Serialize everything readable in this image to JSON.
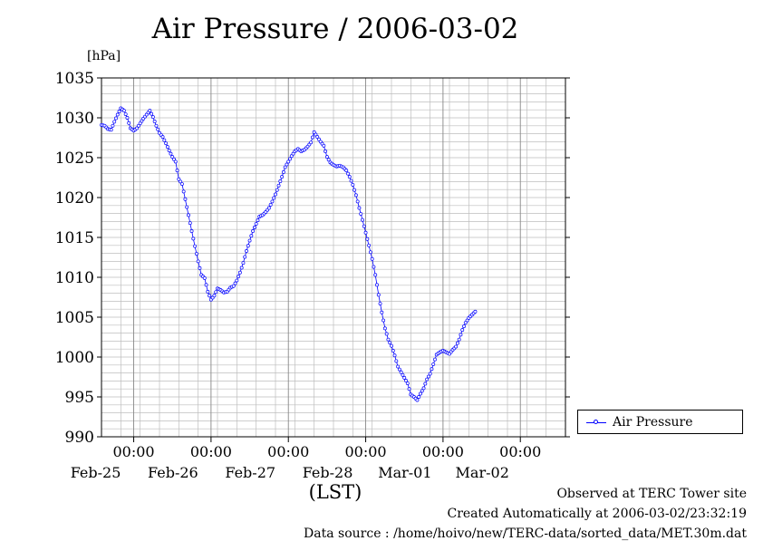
{
  "chart_data": {
    "type": "line",
    "title": "Air Pressure / 2006-03-02",
    "unit_label": "[hPa]",
    "xlabel": "(LST)",
    "ylim": [
      990,
      1035
    ],
    "yticks": [
      990,
      995,
      1000,
      1005,
      1010,
      1015,
      1020,
      1025,
      1030,
      1035
    ],
    "x_unit": "hours from 2006-02-24 14:00",
    "xlim": [
      0,
      144
    ],
    "xticks": [
      {
        "x": 10,
        "time": "00:00",
        "date": "Feb-25"
      },
      {
        "x": 34,
        "time": "00:00",
        "date": "Feb-26"
      },
      {
        "x": 58,
        "time": "00:00",
        "date": "Feb-27"
      },
      {
        "x": 82,
        "time": "00:00",
        "date": "Feb-28"
      },
      {
        "x": 106,
        "time": "00:00",
        "date": "Mar-01"
      },
      {
        "x": 130,
        "time": "00:00",
        "date": "Mar-02"
      }
    ],
    "grid": true,
    "legend_position": "bottom-right",
    "series": [
      {
        "name": "Air Pressure",
        "color": "#0000ff",
        "points": [
          [
            0,
            1029.1
          ],
          [
            1,
            1029.0
          ],
          [
            2,
            1028.6
          ],
          [
            3,
            1028.5
          ],
          [
            4,
            1029.5
          ],
          [
            5,
            1030.4
          ],
          [
            6,
            1031.2
          ],
          [
            7,
            1030.9
          ],
          [
            8,
            1030.0
          ],
          [
            9,
            1028.7
          ],
          [
            10,
            1028.4
          ],
          [
            11,
            1028.7
          ],
          [
            12,
            1029.3
          ],
          [
            13,
            1029.9
          ],
          [
            14,
            1030.4
          ],
          [
            15,
            1030.9
          ],
          [
            16,
            1030.1
          ],
          [
            17,
            1029.0
          ],
          [
            18,
            1028.1
          ],
          [
            19,
            1027.6
          ],
          [
            20,
            1026.8
          ],
          [
            21,
            1025.9
          ],
          [
            22,
            1025.1
          ],
          [
            23,
            1024.5
          ],
          [
            24,
            1022.3
          ],
          [
            25,
            1021.7
          ],
          [
            26,
            1019.8
          ],
          [
            27,
            1017.8
          ],
          [
            28,
            1015.8
          ],
          [
            29,
            1013.9
          ],
          [
            30,
            1012.0
          ],
          [
            31,
            1010.3
          ],
          [
            32,
            1009.9
          ],
          [
            33,
            1008.2
          ],
          [
            34,
            1007.2
          ],
          [
            35,
            1007.7
          ],
          [
            36,
            1008.6
          ],
          [
            37,
            1008.4
          ],
          [
            38,
            1008.1
          ],
          [
            39,
            1008.2
          ],
          [
            40,
            1008.7
          ],
          [
            41,
            1008.9
          ],
          [
            42,
            1009.6
          ],
          [
            43,
            1010.6
          ],
          [
            44,
            1011.8
          ],
          [
            45,
            1013.3
          ],
          [
            46,
            1014.6
          ],
          [
            47,
            1015.8
          ],
          [
            48,
            1016.7
          ],
          [
            49,
            1017.6
          ],
          [
            50,
            1017.8
          ],
          [
            51,
            1018.2
          ],
          [
            52,
            1018.7
          ],
          [
            53,
            1019.5
          ],
          [
            54,
            1020.4
          ],
          [
            55,
            1021.5
          ],
          [
            56,
            1022.6
          ],
          [
            57,
            1023.8
          ],
          [
            58,
            1024.5
          ],
          [
            59,
            1025.2
          ],
          [
            60,
            1025.8
          ],
          [
            61,
            1026.1
          ],
          [
            62,
            1025.8
          ],
          [
            63,
            1026.0
          ],
          [
            64,
            1026.4
          ],
          [
            65,
            1026.9
          ],
          [
            66,
            1028.2
          ],
          [
            67,
            1027.6
          ],
          [
            68,
            1027.0
          ],
          [
            69,
            1026.5
          ],
          [
            70,
            1025.1
          ],
          [
            71,
            1024.4
          ],
          [
            72,
            1024.1
          ],
          [
            73,
            1023.9
          ],
          [
            74,
            1024.0
          ],
          [
            75,
            1023.8
          ],
          [
            76,
            1023.4
          ],
          [
            77,
            1022.6
          ],
          [
            78,
            1021.6
          ],
          [
            79,
            1020.3
          ],
          [
            80,
            1018.7
          ],
          [
            81,
            1017.2
          ],
          [
            82,
            1015.6
          ],
          [
            83,
            1014.0
          ],
          [
            84,
            1012.3
          ],
          [
            85,
            1010.3
          ],
          [
            86,
            1007.8
          ],
          [
            87,
            1005.6
          ],
          [
            88,
            1003.6
          ],
          [
            89,
            1002.2
          ],
          [
            90,
            1001.4
          ],
          [
            91,
            1000.2
          ],
          [
            92,
            998.8
          ],
          [
            93,
            998.1
          ],
          [
            94,
            997.4
          ],
          [
            95,
            996.7
          ],
          [
            96,
            995.3
          ],
          [
            97,
            995.0
          ],
          [
            98,
            994.6
          ],
          [
            99,
            995.4
          ],
          [
            100,
            996.1
          ],
          [
            101,
            997.2
          ],
          [
            102,
            997.9
          ],
          [
            103,
            999.1
          ],
          [
            104,
            1000.3
          ],
          [
            105,
            1000.6
          ],
          [
            106,
            1000.8
          ],
          [
            107,
            1000.6
          ],
          [
            108,
            1000.4
          ],
          [
            109,
            1000.9
          ],
          [
            110,
            1001.3
          ],
          [
            111,
            1002.2
          ],
          [
            112,
            1003.4
          ],
          [
            113,
            1004.3
          ],
          [
            114,
            1004.9
          ],
          [
            115,
            1005.3
          ],
          [
            116,
            1005.7
          ]
        ]
      }
    ]
  },
  "notes": {
    "observed": "Observed at TERC Tower site",
    "created": "Created Automatically at 2006-03-02/23:32:19",
    "source": "Data source : /home/hoivo/new/TERC-data/sorted_data/MET.30m.dat"
  }
}
